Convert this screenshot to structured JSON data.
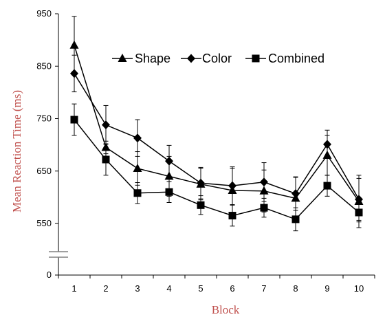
{
  "chart_data": {
    "type": "line",
    "xlabel": "Block",
    "ylabel": "Mean Reaction Time (ms)",
    "categories": [
      "1",
      "2",
      "3",
      "4",
      "5",
      "6",
      "7",
      "8",
      "9",
      "10"
    ],
    "y_ticks": [
      "0",
      "550",
      "650",
      "750",
      "850",
      "950"
    ],
    "ylim": [
      500,
      950
    ],
    "axis_break": true,
    "legend_position": "top-center",
    "series": [
      {
        "name": "Shape",
        "marker": "triangle",
        "values": [
          890,
          695,
          655,
          640,
          625,
          613,
          612,
          598,
          680,
          592
        ],
        "errors": [
          55,
          12,
          32,
          38,
          30,
          42,
          40,
          40,
          38,
          50
        ]
      },
      {
        "name": "Color",
        "marker": "diamond",
        "values": [
          836,
          738,
          713,
          669,
          627,
          622,
          629,
          607,
          701,
          596
        ],
        "errors": [
          35,
          37,
          35,
          30,
          30,
          36,
          37,
          32,
          27,
          40
        ]
      },
      {
        "name": "Combined",
        "marker": "square",
        "values": [
          748,
          672,
          608,
          610,
          585,
          565,
          580,
          558,
          622,
          571
        ],
        "errors": [
          30,
          30,
          20,
          20,
          18,
          20,
          18,
          22,
          20,
          18
        ]
      }
    ],
    "colors": {
      "line": "#000000",
      "axis_title": "#c0504d",
      "break_mark": "#808080"
    }
  }
}
